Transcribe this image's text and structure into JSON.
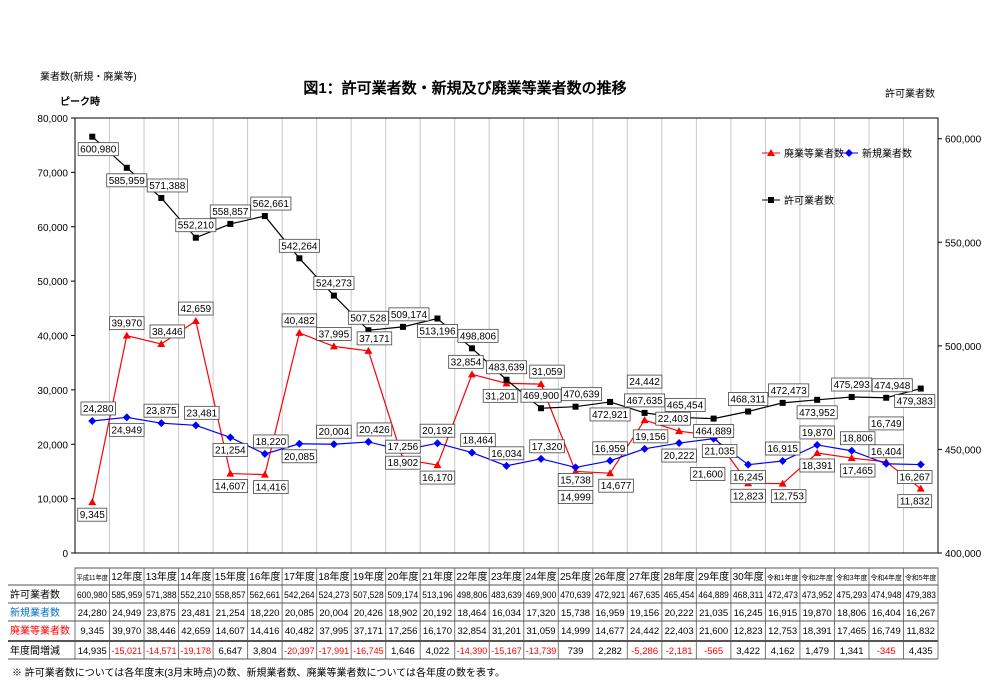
{
  "chart_data": {
    "type": "line",
    "title": "図1：許可業者数・新規及び廃業等業者数の推移",
    "ylabel_left": "業者数(新規・廃業等)",
    "ylabel_right": "許可業者数",
    "peak_note": "ピーク時",
    "ylim_left": [
      0,
      80000
    ],
    "ylim_right": [
      400000,
      610000
    ],
    "yticks_left": [
      "0",
      "10,000",
      "20,000",
      "30,000",
      "40,000",
      "50,000",
      "60,000",
      "70,000",
      "80,000"
    ],
    "yticks_right": [
      "400,000",
      "450,000",
      "500,000",
      "550,000",
      "600,000"
    ],
    "grid": "vertical",
    "legend_position": "right",
    "categories": [
      "平成11年度",
      "12年度",
      "13年度",
      "14年度",
      "15年度",
      "16年度",
      "17年度",
      "18年度",
      "19年度",
      "20年度",
      "21年度",
      "22年度",
      "23年度",
      "24年度",
      "25年度",
      "26年度",
      "27年度",
      "28年度",
      "29年度",
      "30年度",
      "令和1年度",
      "令和2年度",
      "令和3年度",
      "令和4年度",
      "令和5年度"
    ],
    "series": [
      {
        "name": "廃業等業者数",
        "axis": "left",
        "color": "#ff0000",
        "marker": "triangle",
        "values": [
          9345,
          39970,
          38446,
          42659,
          14607,
          14416,
          40482,
          37995,
          37171,
          17256,
          16170,
          32854,
          31201,
          31059,
          14999,
          14677,
          24442,
          22403,
          21600,
          12823,
          12753,
          18391,
          17465,
          16749,
          11832
        ]
      },
      {
        "name": "新規業者数",
        "axis": "left",
        "color": "#0000ff",
        "marker": "diamond",
        "values": [
          24280,
          24949,
          23875,
          23481,
          21254,
          18220,
          20085,
          20004,
          20426,
          18902,
          20192,
          18464,
          16034,
          17320,
          15738,
          16959,
          19156,
          20222,
          21035,
          16245,
          16915,
          19870,
          18806,
          16404,
          16267
        ]
      },
      {
        "name": "許可業者数",
        "axis": "right",
        "color": "#000000",
        "marker": "square",
        "values": [
          600980,
          585959,
          571388,
          552210,
          558857,
          562661,
          542264,
          524273,
          507528,
          509174,
          513196,
          498806,
          483639,
          469900,
          470639,
          472921,
          467635,
          465454,
          464889,
          468311,
          472473,
          473952,
          475293,
          474948,
          479383
        ]
      }
    ],
    "table": {
      "row_labels": [
        "許可業者数",
        "新規業者数",
        "廃業等業者数",
        "年度間増減"
      ],
      "rows": [
        [
          "600,980",
          "585,959",
          "571,388",
          "552,210",
          "558,857",
          "562,661",
          "542,264",
          "524,273",
          "507,528",
          "509,174",
          "513,196",
          "498,806",
          "483,639",
          "469,900",
          "470,639",
          "472,921",
          "467,635",
          "465,454",
          "464,889",
          "468,311",
          "472,473",
          "473,952",
          "475,293",
          "474,948",
          "479,383"
        ],
        [
          "24,280",
          "24,949",
          "23,875",
          "23,481",
          "21,254",
          "18,220",
          "20,085",
          "20,004",
          "20,426",
          "18,902",
          "20,192",
          "18,464",
          "16,034",
          "17,320",
          "15,738",
          "16,959",
          "19,156",
          "20,222",
          "21,035",
          "16,245",
          "16,915",
          "19,870",
          "18,806",
          "16,404",
          "16,267"
        ],
        [
          "9,345",
          "39,970",
          "38,446",
          "42,659",
          "14,607",
          "14,416",
          "40,482",
          "37,995",
          "37,171",
          "17,256",
          "16,170",
          "32,854",
          "31,201",
          "31,059",
          "14,999",
          "14,677",
          "24,442",
          "22,403",
          "21,600",
          "12,823",
          "12,753",
          "18,391",
          "17,465",
          "16,749",
          "11,832"
        ],
        [
          "14,935",
          "-15,021",
          "-14,571",
          "-19,178",
          "6,647",
          "3,804",
          "-20,397",
          "-17,991",
          "-16,745",
          "1,646",
          "4,022",
          "-14,390",
          "-15,167",
          "-13,739",
          "739",
          "2,282",
          "-5,286",
          "-2,181",
          "-565",
          "3,422",
          "4,162",
          "1,479",
          "1,341",
          "-345",
          "4,435"
        ]
      ]
    },
    "footnote": "※ 許可業者数については各年度末(3月末時点)の数、新規業者数、廃業等業者数については各年度の数を表す。"
  }
}
